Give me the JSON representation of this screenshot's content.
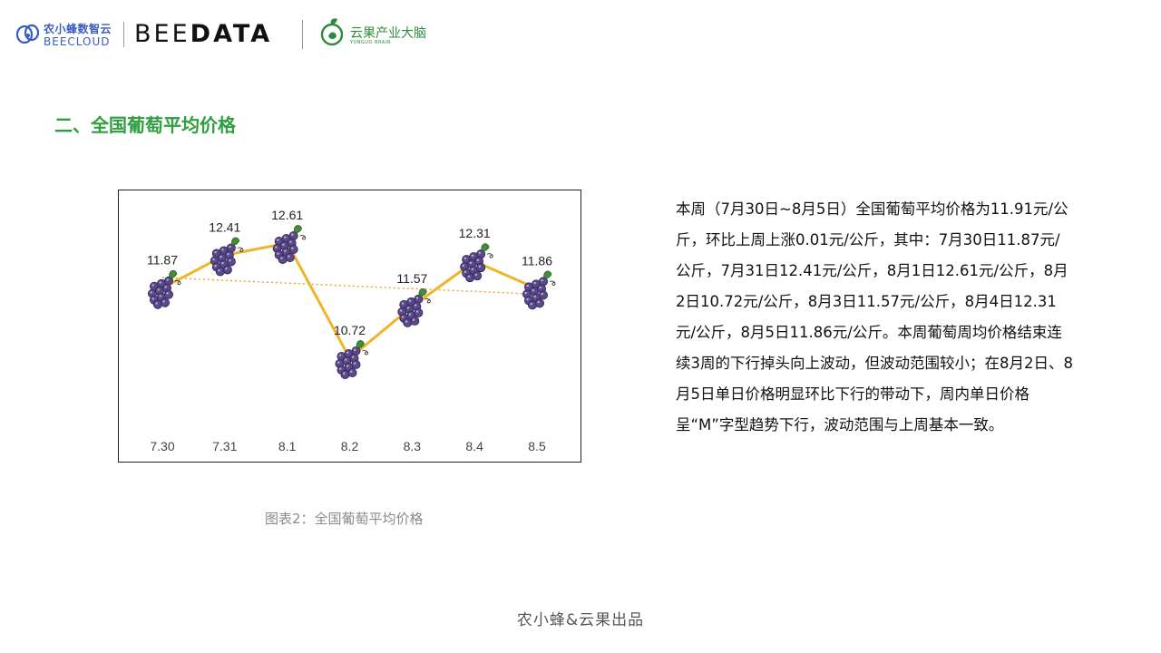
{
  "header": {
    "beecloud_cn": "农小蜂数智云",
    "beecloud_en": "BEECLOUD",
    "beedata_part1": "BEE",
    "beedata_part2": "DATA",
    "yunguo_cn": "云果产业大脑",
    "yunguo_en": "YUNGUO BRAIN"
  },
  "section_title": "二、全国葡萄平均价格",
  "chart_data": {
    "type": "line",
    "categories": [
      "7.30",
      "7.31",
      "8.1",
      "8.2",
      "8.3",
      "8.4",
      "8.5"
    ],
    "series": [
      {
        "values": [
          11.87,
          12.41,
          12.61,
          10.72,
          11.57,
          12.31,
          11.86
        ],
        "color": "#f0b429",
        "marker": "grape-icon"
      }
    ],
    "data_labels": [
      "11.87",
      "12.41",
      "12.61",
      "10.72",
      "11.57",
      "12.31",
      "11.86"
    ],
    "trendline": {
      "style": "dotted",
      "color": "#f0a020"
    },
    "title": "",
    "xlabel": "",
    "ylabel": "",
    "ylim": [
      10.0,
      13.0
    ],
    "grid": false,
    "legend": "none"
  },
  "caption": "图表2：全国葡萄平均价格",
  "description": "本周（7月30日~8月5日）全国葡萄平均价格为11.91元/公斤，环比上周上涨0.01元/公斤，其中：7月30日11.87元/公斤，7月31日12.41元/公斤，8月1日12.61元/公斤，8月2日10.72元/公斤，8月3日11.57元/公斤，8月4日12.31元/公斤，8月5日11.86元/公斤。本周葡萄周均价格结束连续3周的下行掉头向上波动，但波动范围较小；在8月2日、8月5日单日价格明显环比下行的带动下，周内单日价格呈“M”字型趋势下行，波动范围与上周基本一致。",
  "footer": "农小蜂&云果出品",
  "colors": {
    "title_green": "#2f9e3f",
    "line_yellow": "#f0b429",
    "grape_purple": "#5b4a8a",
    "leaf_green": "#3f8f3a",
    "brand_blue": "#3a5bbf"
  }
}
